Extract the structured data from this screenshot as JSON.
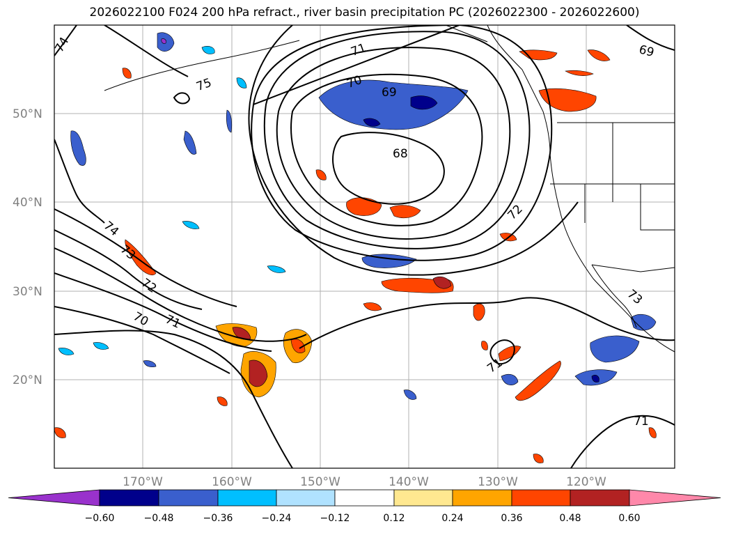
{
  "title": "2026022100 F024 200 hPa refract., river basin precipitation PC (2026022300 - 2026022600)",
  "latitude_labels": [
    "50°N",
    "40°N",
    "30°N",
    "20°N"
  ],
  "longitude_labels": [
    "170°W",
    "160°W",
    "150°W",
    "140°W",
    "130°W",
    "120°W"
  ],
  "contour_labels": [
    "74",
    "75",
    "71",
    "70",
    "69",
    "68",
    "72",
    "74",
    "73",
    "72",
    "70",
    "71",
    "71",
    "73",
    "71",
    "69"
  ],
  "colorbar": {
    "ticks": [
      "−0.60",
      "−0.48",
      "−0.36",
      "−0.24",
      "−0.12",
      "0.12",
      "0.24",
      "0.36",
      "0.48",
      "0.60"
    ],
    "colors": [
      "#9932cc",
      "#00008b",
      "#3a5fcd",
      "#00bfff",
      "#b0e2ff",
      "#ffffff",
      "#ffe890",
      "#ffa500",
      "#ff4500",
      "#b22222",
      "#ff88aa"
    ]
  },
  "colors": {
    "negative_deep": "#00008b",
    "negative_mid": "#3a5fcd",
    "negative_light": "#00bfff",
    "negative_pale": "#b0e2ff",
    "positive_pale": "#ffe890",
    "positive_mid": "#ffa500",
    "positive_strong": "#ff4500",
    "positive_deep": "#b22222",
    "contour": "#000000",
    "grid": "#b0b0b0"
  }
}
